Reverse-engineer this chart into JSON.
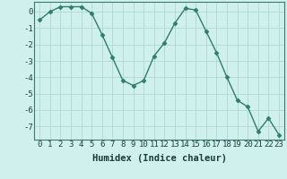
{
  "x": [
    0,
    1,
    2,
    3,
    4,
    5,
    6,
    7,
    8,
    9,
    10,
    11,
    12,
    13,
    14,
    15,
    16,
    17,
    18,
    19,
    20,
    21,
    22,
    23
  ],
  "y": [
    -0.5,
    0.0,
    0.3,
    0.3,
    0.3,
    -0.1,
    -1.4,
    -2.8,
    -4.2,
    -4.5,
    -4.2,
    -2.7,
    -1.9,
    -0.7,
    0.2,
    0.1,
    -1.2,
    -2.5,
    -4.0,
    -5.4,
    -5.8,
    -7.3,
    -6.5,
    -7.5
  ],
  "line_color": "#2e7d6e",
  "marker": "D",
  "marker_size": 2.5,
  "bg_color": "#d0f0ee",
  "grid_color": "#b0d8d4",
  "xlabel": "Humidex (Indice chaleur)",
  "ylim": [
    -7.8,
    0.6
  ],
  "xlim": [
    -0.5,
    23.5
  ],
  "yticks": [
    0,
    -1,
    -2,
    -3,
    -4,
    -5,
    -6,
    -7
  ],
  "xticks": [
    0,
    1,
    2,
    3,
    4,
    5,
    6,
    7,
    8,
    9,
    10,
    11,
    12,
    13,
    14,
    15,
    16,
    17,
    18,
    19,
    20,
    21,
    22,
    23
  ],
  "xlabel_fontsize": 7.5,
  "tick_fontsize": 6.5,
  "spine_color": "#3a7a70",
  "line_width": 1.0
}
